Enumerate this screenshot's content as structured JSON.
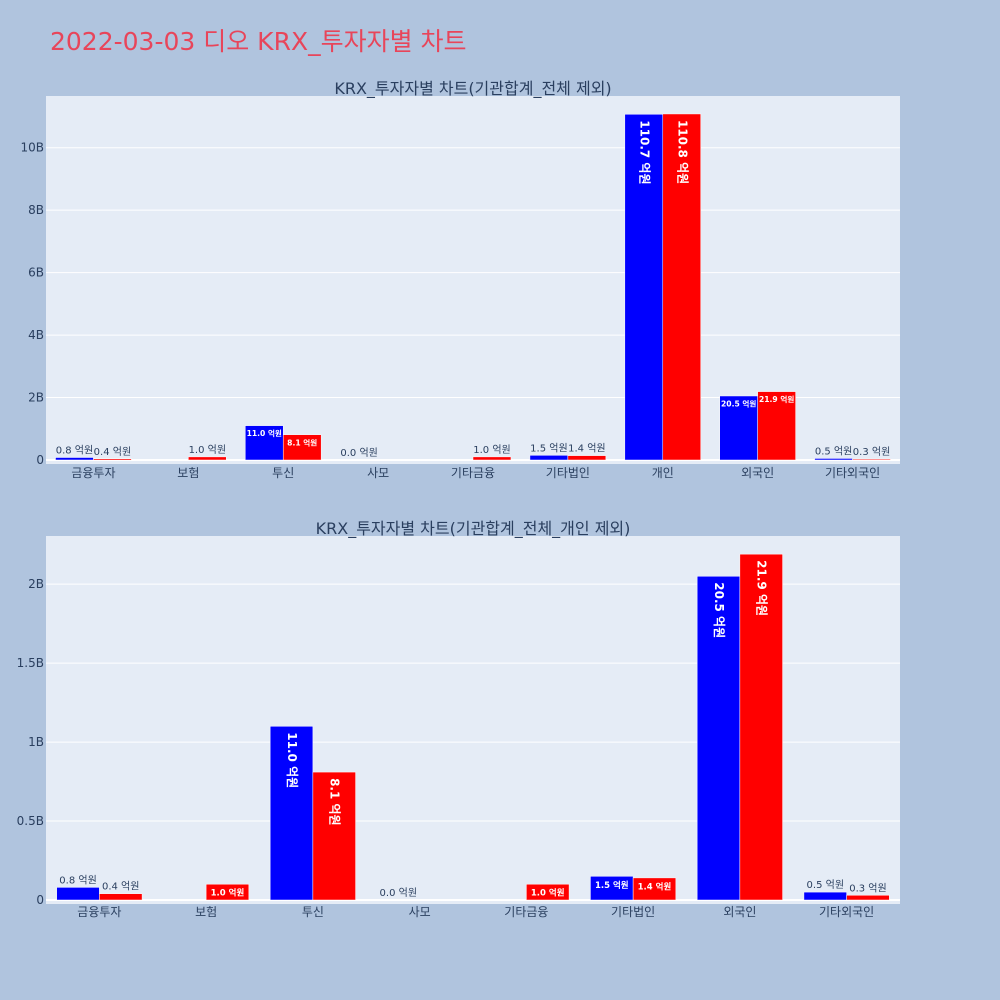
{
  "page_title": "2022-03-03 디오 KRX_투자자별 차트",
  "colors": {
    "series1": "#0000ff",
    "series2": "#ff0000",
    "plot_bg": "#e5ecf6",
    "page_bg": "#b0c4de",
    "title": "#e8455a"
  },
  "chart_data": [
    {
      "type": "bar",
      "title": "KRX_투자자별 차트(기관합계_전체 제외)",
      "categories": [
        "금융투자",
        "보험",
        "투신",
        "사모",
        "기타금융",
        "기타법인",
        "개인",
        "외국인",
        "기타외국인"
      ],
      "series": [
        {
          "values": [
            80000000,
            0,
            1100000000,
            0,
            0,
            150000000,
            11070000000,
            2050000000,
            50000000
          ],
          "labels": [
            "0.8 억원",
            "",
            "11.0 억원",
            "0.0 억원",
            "",
            "1.5 억원",
            "110.7 억원",
            "20.5 억원",
            "0.5 억원"
          ]
        },
        {
          "values": [
            40000000,
            100000000,
            810000000,
            0,
            100000000,
            140000000,
            11080000000,
            2190000000,
            30000000
          ],
          "labels": [
            "0.4 억원",
            "1.0 억원",
            "8.1 억원",
            "",
            "1.0 억원",
            "1.4 억원",
            "110.8 억원",
            "21.9 억원",
            "0.3 억원"
          ]
        }
      ],
      "ylim": [
        0,
        11655000000
      ],
      "yticks": [
        0,
        2000000000,
        4000000000,
        6000000000,
        8000000000,
        10000000000
      ],
      "ytick_labels": [
        "0",
        "2B",
        "4B",
        "6B",
        "8B",
        "10B"
      ],
      "grid": true
    },
    {
      "type": "bar",
      "title": "KRX_투자자별 차트(기관합계_전체_개인 제외)",
      "categories": [
        "금융투자",
        "보험",
        "투신",
        "사모",
        "기타금융",
        "기타법인",
        "외국인",
        "기타외국인"
      ],
      "series": [
        {
          "values": [
            80000000,
            0,
            1100000000,
            0,
            0,
            150000000,
            2050000000,
            50000000
          ],
          "labels": [
            "0.8 억원",
            "",
            "11.0 억원",
            "0.0 억원",
            "",
            "1.5 억원",
            "20.5 억원",
            "0.5 억원"
          ]
        },
        {
          "values": [
            40000000,
            100000000,
            810000000,
            0,
            100000000,
            140000000,
            2190000000,
            30000000
          ],
          "labels": [
            "0.4 억원",
            "1.0 억원",
            "8.1 억원",
            "",
            "1.0 억원",
            "1.4 억원",
            "21.9 억원",
            "0.3 억원"
          ]
        }
      ],
      "ylim": [
        0,
        2305000000
      ],
      "yticks": [
        0,
        500000000,
        1000000000,
        1500000000,
        2000000000
      ],
      "ytick_labels": [
        "0",
        "0.5B",
        "1B",
        "1.5B",
        "2B"
      ],
      "grid": true
    }
  ]
}
